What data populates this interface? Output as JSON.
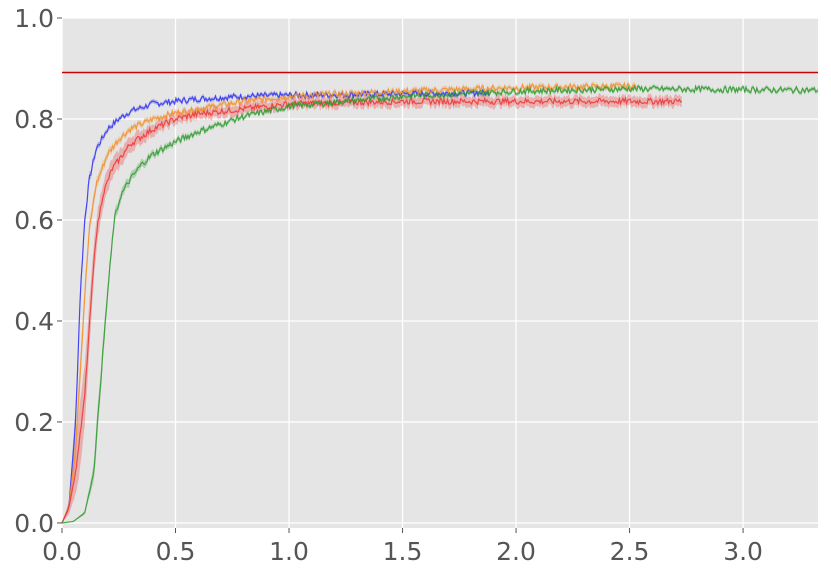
{
  "chart_data": {
    "type": "line",
    "title": "",
    "xlabel": "",
    "ylabel": "",
    "xlim": [
      0,
      3.33
    ],
    "ylim": [
      -0.01,
      1.0
    ],
    "x_ticks": [
      "0.0",
      "0.5",
      "1.0",
      "1.5",
      "2.0",
      "2.5",
      "3.0"
    ],
    "x_tick_values": [
      0,
      0.5,
      1.0,
      1.5,
      2.0,
      2.5,
      3.0
    ],
    "y_ticks": [
      "0.0",
      "0.2",
      "0.4",
      "0.6",
      "0.8",
      "1.0"
    ],
    "y_tick_values": [
      0,
      0.2,
      0.4,
      0.6,
      0.8,
      1.0
    ],
    "grid": true,
    "background": "#e5e5e5",
    "reference_line": {
      "y": 0.892,
      "color": "#cc0000"
    },
    "series": [
      {
        "color": "#3333ee",
        "x": [
          0,
          0.03,
          0.06,
          0.08,
          0.1,
          0.12,
          0.15,
          0.2,
          0.25,
          0.3,
          0.4,
          0.5,
          0.6,
          0.8,
          1.0,
          1.2,
          1.5,
          1.88
        ],
        "y": [
          0.0,
          0.03,
          0.2,
          0.45,
          0.6,
          0.68,
          0.74,
          0.78,
          0.8,
          0.815,
          0.83,
          0.835,
          0.84,
          0.845,
          0.847,
          0.848,
          0.85,
          0.852
        ],
        "band": 0.012
      },
      {
        "color": "#f0902a",
        "x": [
          0,
          0.03,
          0.06,
          0.1,
          0.12,
          0.15,
          0.2,
          0.25,
          0.3,
          0.4,
          0.5,
          0.6,
          0.8,
          1.0,
          1.5,
          2.0,
          2.53
        ],
        "y": [
          0.0,
          0.03,
          0.15,
          0.45,
          0.58,
          0.67,
          0.73,
          0.76,
          0.78,
          0.8,
          0.812,
          0.82,
          0.835,
          0.845,
          0.855,
          0.862,
          0.865
        ],
        "band": 0.015
      },
      {
        "color": "#ee3333",
        "x": [
          0,
          0.03,
          0.06,
          0.1,
          0.13,
          0.15,
          0.18,
          0.22,
          0.3,
          0.4,
          0.5,
          0.6,
          0.8,
          1.0,
          1.5,
          2.0,
          2.5,
          2.73
        ],
        "y": [
          0.0,
          0.03,
          0.1,
          0.25,
          0.45,
          0.57,
          0.65,
          0.7,
          0.75,
          0.78,
          0.8,
          0.81,
          0.82,
          0.83,
          0.835,
          0.835,
          0.835,
          0.835
        ],
        "band": 0.03
      },
      {
        "color": "#2e9a2e",
        "x": [
          0,
          0.05,
          0.1,
          0.14,
          0.17,
          0.2,
          0.23,
          0.26,
          0.3,
          0.35,
          0.4,
          0.5,
          0.6,
          0.8,
          1.0,
          1.5,
          2.0,
          2.5,
          3.0,
          3.33
        ],
        "y": [
          0.0,
          0.003,
          0.02,
          0.1,
          0.28,
          0.45,
          0.6,
          0.65,
          0.68,
          0.71,
          0.73,
          0.755,
          0.775,
          0.805,
          0.825,
          0.845,
          0.855,
          0.86,
          0.858,
          0.857
        ],
        "band": 0.012
      }
    ]
  }
}
